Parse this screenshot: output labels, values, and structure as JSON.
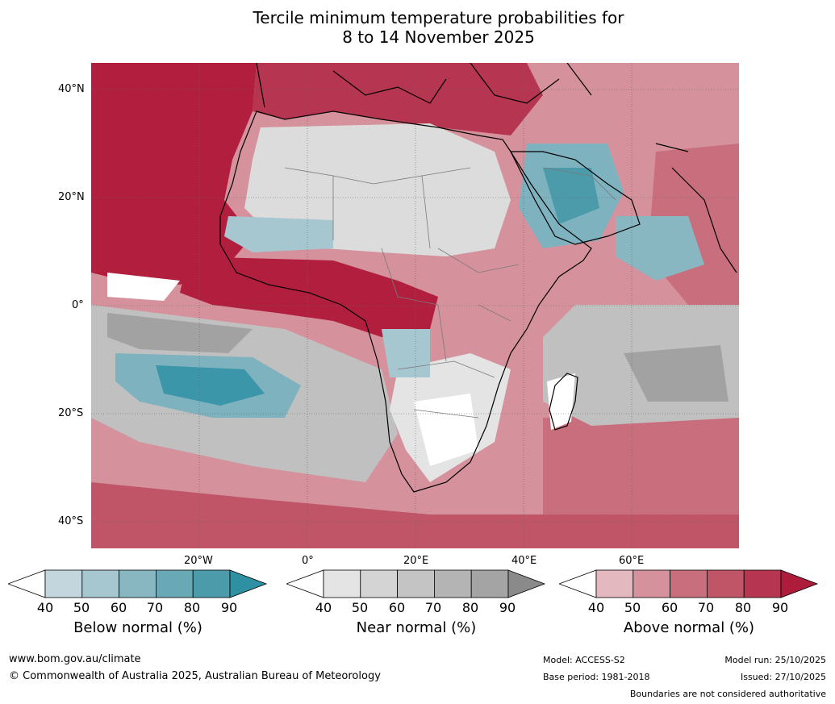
{
  "title": {
    "line1": "Tercile minimum temperature probabilities for",
    "line2": "8 to 14 November 2025"
  },
  "map": {
    "lat_labels": [
      "40°N",
      "20°N",
      "0°",
      "20°S",
      "40°S"
    ],
    "lon_labels": [
      "20°W",
      "0°",
      "20°E",
      "40°E",
      "60°E"
    ]
  },
  "legends": [
    {
      "name": "below",
      "title": "Below normal (%)",
      "ticks": [
        "40",
        "50",
        "60",
        "70",
        "80",
        "90"
      ],
      "colors": [
        "#c3d6dd",
        "#a6c7cf",
        "#88b7c2",
        "#69a9b6",
        "#4b9bab",
        "#2f8fa3"
      ]
    },
    {
      "name": "near",
      "title": "Near normal (%)",
      "ticks": [
        "40",
        "50",
        "60",
        "70",
        "80",
        "90"
      ],
      "colors": [
        "#e4e4e4",
        "#d4d4d4",
        "#c4c4c4",
        "#b4b4b4",
        "#a4a4a4",
        "#8a8a8a"
      ]
    },
    {
      "name": "above",
      "title": "Above normal (%)",
      "ticks": [
        "40",
        "50",
        "60",
        "70",
        "80",
        "90"
      ],
      "colors": [
        "#e3b8bf",
        "#d5929d",
        "#c96e7d",
        "#bf5567",
        "#b63550",
        "#ae1c3b"
      ]
    }
  ],
  "footer": {
    "url": "www.bom.gov.au/climate",
    "copyright": "© Commonwealth of Australia 2025, Australian Bureau of Meteorology",
    "model": "Model: ACCESS-S2",
    "base_period": "Base period: 1981-2018",
    "model_run": "Model run: 25/10/2025",
    "issued": "Issued: 27/10/2025",
    "disclaimer": "Boundaries are not considered authoritative"
  },
  "colors": {
    "above_strong": "#b21f3e",
    "above_mid": "#c96e7d",
    "above_light": "#e3b8bf",
    "near_light": "#dcdcdc",
    "near_mid": "#c0c0c0",
    "near_dark": "#a2a2a2",
    "below_light": "#b4cfd7",
    "below_mid": "#7fb2bf",
    "below_dark": "#3a96a8"
  }
}
